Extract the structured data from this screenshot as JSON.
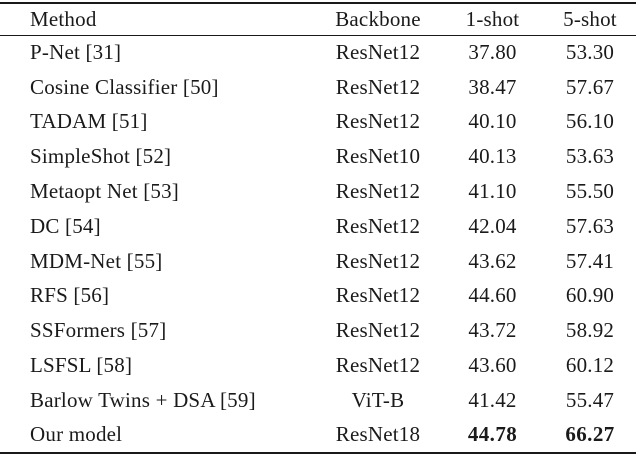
{
  "colors": {
    "text": "#1a1a1a",
    "rule": "#1a1a1a",
    "background": "#ffffff"
  },
  "table": {
    "columns": {
      "method": "Method",
      "backbone": "Backbone",
      "one_shot": "1-shot",
      "five_shot": "5-shot"
    },
    "rows": [
      {
        "method": "P-Net [31]",
        "backbone": "ResNet12",
        "one_shot": "37.80",
        "five_shot": "53.30",
        "highlight": false
      },
      {
        "method": "Cosine Classifier [50]",
        "backbone": "ResNet12",
        "one_shot": "38.47",
        "five_shot": "57.67",
        "highlight": false
      },
      {
        "method": "TADAM [51]",
        "backbone": "ResNet12",
        "one_shot": "40.10",
        "five_shot": "56.10",
        "highlight": false
      },
      {
        "method": "SimpleShot [52]",
        "backbone": "ResNet10",
        "one_shot": "40.13",
        "five_shot": "53.63",
        "highlight": false
      },
      {
        "method": "Metaopt Net [53]",
        "backbone": "ResNet12",
        "one_shot": "41.10",
        "five_shot": "55.50",
        "highlight": false
      },
      {
        "method": "DC [54]",
        "backbone": "ResNet12",
        "one_shot": "42.04",
        "five_shot": "57.63",
        "highlight": false
      },
      {
        "method": "MDM-Net [55]",
        "backbone": "ResNet12",
        "one_shot": "43.62",
        "five_shot": "57.41",
        "highlight": false
      },
      {
        "method": "RFS [56]",
        "backbone": "ResNet12",
        "one_shot": "44.60",
        "five_shot": "60.90",
        "highlight": false
      },
      {
        "method": "SSFormers [57]",
        "backbone": "ResNet12",
        "one_shot": "43.72",
        "five_shot": "58.92",
        "highlight": false
      },
      {
        "method": "LSFSL [58]",
        "backbone": "ResNet12",
        "one_shot": "43.60",
        "five_shot": "60.12",
        "highlight": false
      },
      {
        "method": "Barlow Twins + DSA [59]",
        "backbone": "ViT-B",
        "one_shot": "41.42",
        "five_shot": "55.47",
        "highlight": false
      },
      {
        "method": "Our model",
        "backbone": "ResNet18",
        "one_shot": "44.78",
        "five_shot": "66.27",
        "highlight": true
      }
    ]
  }
}
